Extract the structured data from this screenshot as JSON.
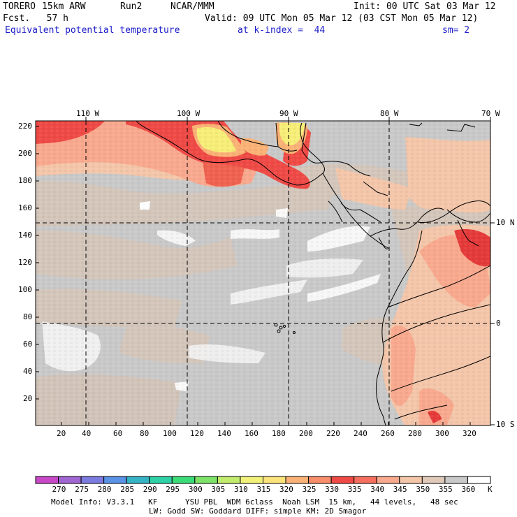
{
  "header": {
    "model": "TORERO",
    "resolution": "15km ARW",
    "run": "Run2",
    "org": "NCAR/MMM",
    "init": "Init: 00 UTC Sat 03 Mar 12",
    "fcst": "Fcst.   57 h",
    "valid": "Valid: 09 UTC Mon 05 Mar 12 (03 CST Mon 05 Mar 12)",
    "field": "Equivalent potential temperature",
    "level": "at k-index =  44",
    "smoothing": "sm= 2"
  },
  "map": {
    "lon_labels": [
      "110 W",
      "100 W",
      "90 W",
      "80 W",
      "70 W"
    ],
    "lat_labels": [
      "10 N",
      "0",
      "10 S"
    ],
    "y_ticks": [
      "220",
      "200",
      "180",
      "160",
      "140",
      "120",
      "100",
      "80",
      "60",
      "40",
      "20"
    ],
    "x_ticks": [
      "20",
      "40",
      "60",
      "80",
      "100",
      "120",
      "140",
      "160",
      "180",
      "200",
      "220",
      "240",
      "260",
      "280",
      "300",
      "320"
    ]
  },
  "colorbar": {
    "unit": "K",
    "labels": [
      "270",
      "275",
      "280",
      "285",
      "290",
      "295",
      "300",
      "305",
      "310",
      "315",
      "320",
      "325",
      "330",
      "335",
      "340",
      "345",
      "350",
      "355",
      "360"
    ],
    "colors": [
      "#c848c8",
      "#a066d2",
      "#7c7ce0",
      "#5a92e6",
      "#36b4c6",
      "#2ed2a6",
      "#3cdc78",
      "#7ee268",
      "#c2ec6e",
      "#f2f27a",
      "#fce47c",
      "#fbb276",
      "#f78e6c",
      "#ef4a46",
      "#f66e5e",
      "#f9a98e",
      "#f4c6aa",
      "#dfc9b9",
      "#c9c9c9",
      "#ffffff"
    ]
  },
  "footer": {
    "line1": "Model Info: V3.3.1   KF      YSU PBL  WDM 6class  Noah LSM  15 km,   44 levels,   48 sec",
    "line2": "LW: Godd SW: Goddard DIFF: simple KM: 2D Smagor"
  }
}
